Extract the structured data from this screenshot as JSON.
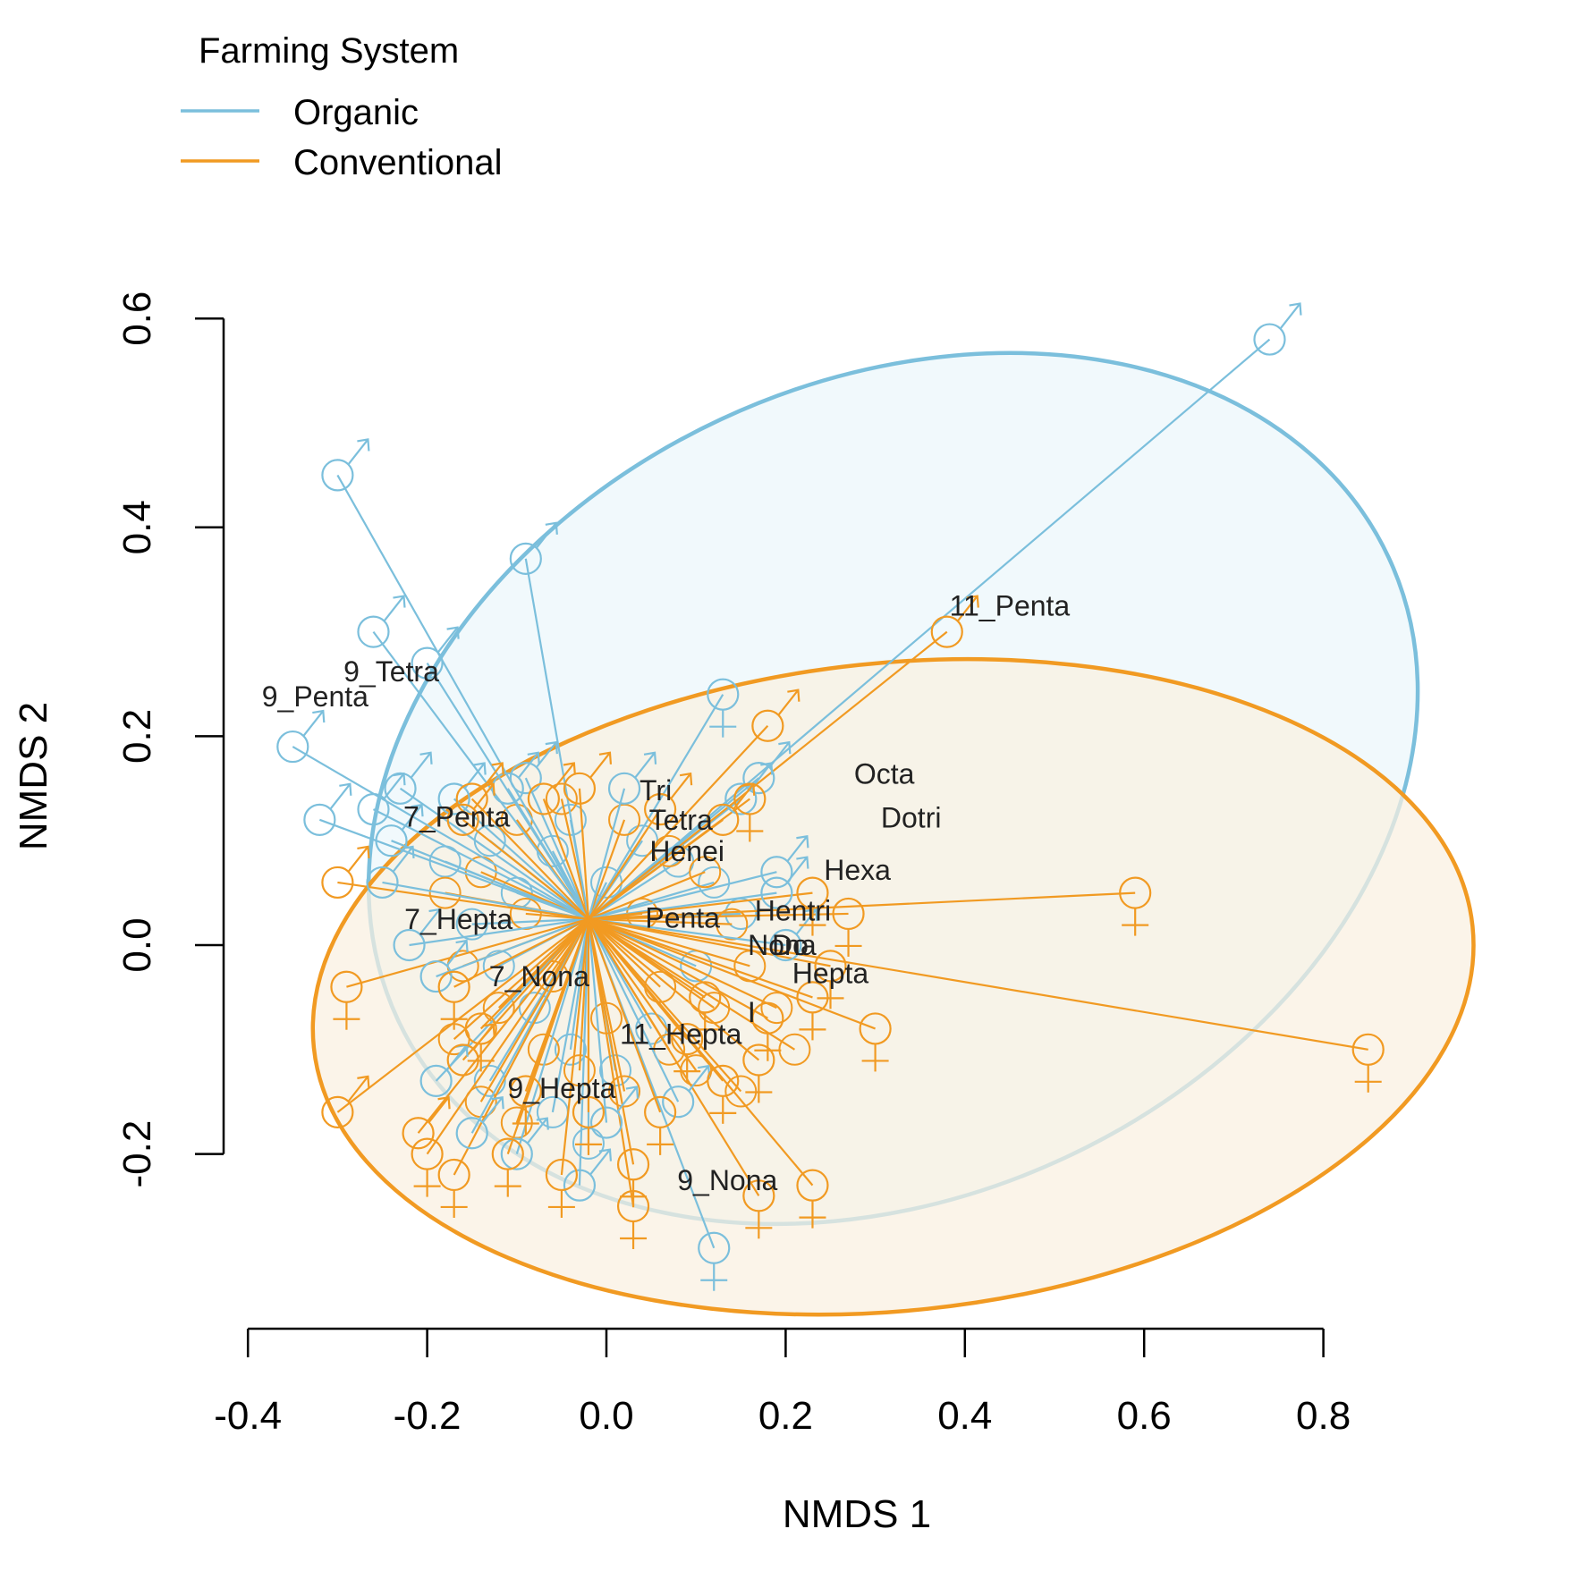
{
  "colors": {
    "organic": "#7bbfdc",
    "conventional": "#f19a22",
    "axis": "#000000",
    "label": "#222222"
  },
  "chart_data": {
    "type": "scatter",
    "xlabel": "NMDS 1",
    "ylabel": "NMDS 2",
    "xlim": [
      -0.4,
      0.8
    ],
    "ylim": [
      -0.2,
      0.6
    ],
    "xticks": [
      -0.4,
      -0.2,
      0.0,
      0.2,
      0.4,
      0.6,
      0.8
    ],
    "yticks": [
      -0.2,
      0.0,
      0.2,
      0.4,
      0.6
    ],
    "xtick_labels": [
      "-0.4",
      "-0.2",
      "0.0",
      "0.2",
      "0.4",
      "0.6",
      "0.8"
    ],
    "ytick_labels": [
      "-0.2",
      "0.0",
      "0.2",
      "0.4",
      "0.6"
    ],
    "grid": false,
    "legend": {
      "title": "Farming System",
      "position": "top-left",
      "entries": [
        {
          "name": "Organic",
          "color": "organic"
        },
        {
          "name": "Conventional",
          "color": "conventional"
        }
      ]
    },
    "centroid": [
      -0.02,
      0.025
    ],
    "ellipses": [
      {
        "group": "organic",
        "cx": 0.32,
        "cy": 0.15,
        "rx": 0.61,
        "ry": 0.39,
        "angle_deg": -25
      },
      {
        "group": "conventional",
        "cx": 0.32,
        "cy": -0.04,
        "rx": 0.65,
        "ry": 0.31,
        "angle_deg": -6
      }
    ],
    "series": [
      {
        "name": "Organic",
        "color": "organic",
        "points": [
          {
            "x": 0.74,
            "y": 0.58,
            "sym": "male"
          },
          {
            "x": -0.3,
            "y": 0.45,
            "sym": "male"
          },
          {
            "x": -0.09,
            "y": 0.37,
            "sym": "male"
          },
          {
            "x": -0.26,
            "y": 0.3,
            "sym": "male"
          },
          {
            "x": -0.2,
            "y": 0.27,
            "sym": "male"
          },
          {
            "x": -0.35,
            "y": 0.19,
            "sym": "male"
          },
          {
            "x": -0.32,
            "y": 0.12,
            "sym": "male"
          },
          {
            "x": -0.26,
            "y": 0.13,
            "sym": "male"
          },
          {
            "x": -0.23,
            "y": 0.15,
            "sym": "male"
          },
          {
            "x": -0.17,
            "y": 0.14,
            "sym": "male"
          },
          {
            "x": -0.11,
            "y": 0.15,
            "sym": "male"
          },
          {
            "x": -0.09,
            "y": 0.16,
            "sym": "male"
          },
          {
            "x": 0.02,
            "y": 0.15,
            "sym": "male"
          },
          {
            "x": -0.24,
            "y": 0.1,
            "sym": "male"
          },
          {
            "x": -0.25,
            "y": 0.06,
            "sym": "male"
          },
          {
            "x": -0.22,
            "y": 0.0,
            "sym": "male"
          },
          {
            "x": -0.19,
            "y": -0.03,
            "sym": "male"
          },
          {
            "x": -0.19,
            "y": -0.13,
            "sym": "male"
          },
          {
            "x": -0.15,
            "y": -0.18,
            "sym": "male"
          },
          {
            "x": -0.1,
            "y": -0.2,
            "sym": "male"
          },
          {
            "x": -0.03,
            "y": -0.23,
            "sym": "male"
          },
          {
            "x": 0.0,
            "y": -0.17,
            "sym": "male"
          },
          {
            "x": 0.13,
            "y": 0.24,
            "sym": "female"
          },
          {
            "x": 0.17,
            "y": 0.16,
            "sym": "male"
          },
          {
            "x": 0.15,
            "y": 0.14,
            "sym": "male"
          },
          {
            "x": 0.19,
            "y": 0.07,
            "sym": "male"
          },
          {
            "x": 0.19,
            "y": 0.05,
            "sym": "male"
          },
          {
            "x": 0.2,
            "y": 0.0,
            "sym": "male"
          },
          {
            "x": 0.08,
            "y": -0.15,
            "sym": "male"
          },
          {
            "x": 0.12,
            "y": -0.29,
            "sym": "female"
          }
        ]
      },
      {
        "name": "Conventional",
        "color": "conventional",
        "points": [
          {
            "x": 0.38,
            "y": 0.3,
            "sym": "male"
          },
          {
            "x": 0.59,
            "y": 0.05,
            "sym": "female"
          },
          {
            "x": 0.85,
            "y": -0.1,
            "sym": "female"
          },
          {
            "x": -0.3,
            "y": 0.06,
            "sym": "male"
          },
          {
            "x": -0.29,
            "y": -0.04,
            "sym": "female"
          },
          {
            "x": -0.3,
            "y": -0.16,
            "sym": "male"
          },
          {
            "x": 0.18,
            "y": 0.21,
            "sym": "male"
          },
          {
            "x": 0.16,
            "y": 0.14,
            "sym": "female"
          },
          {
            "x": 0.23,
            "y": 0.05,
            "sym": "female"
          },
          {
            "x": 0.27,
            "y": 0.03,
            "sym": "female"
          },
          {
            "x": 0.25,
            "y": -0.02,
            "sym": "female"
          },
          {
            "x": 0.23,
            "y": -0.05,
            "sym": "female"
          },
          {
            "x": 0.3,
            "y": -0.08,
            "sym": "female"
          },
          {
            "x": 0.18,
            "y": -0.07,
            "sym": "female"
          },
          {
            "x": 0.17,
            "y": -0.11,
            "sym": "female"
          },
          {
            "x": 0.13,
            "y": -0.13,
            "sym": "female"
          },
          {
            "x": 0.06,
            "y": -0.16,
            "sym": "female"
          },
          {
            "x": 0.03,
            "y": -0.21,
            "sym": "female"
          },
          {
            "x": 0.03,
            "y": -0.25,
            "sym": "female"
          },
          {
            "x": 0.17,
            "y": -0.24,
            "sym": "female"
          },
          {
            "x": 0.23,
            "y": -0.23,
            "sym": "female"
          },
          {
            "x": -0.05,
            "y": -0.22,
            "sym": "female"
          },
          {
            "x": -0.11,
            "y": -0.2,
            "sym": "female"
          },
          {
            "x": -0.17,
            "y": -0.22,
            "sym": "female"
          },
          {
            "x": -0.2,
            "y": -0.2,
            "sym": "female"
          },
          {
            "x": -0.21,
            "y": -0.18,
            "sym": "male"
          },
          {
            "x": -0.16,
            "y": -0.11,
            "sym": "male"
          },
          {
            "x": -0.14,
            "y": -0.08,
            "sym": "female"
          },
          {
            "x": -0.17,
            "y": -0.04,
            "sym": "female"
          },
          {
            "x": -0.16,
            "y": 0.12,
            "sym": "male"
          },
          {
            "x": -0.15,
            "y": 0.14,
            "sym": "male"
          },
          {
            "x": -0.07,
            "y": 0.14,
            "sym": "male"
          },
          {
            "x": -0.03,
            "y": 0.15,
            "sym": "male"
          },
          {
            "x": 0.06,
            "y": 0.13,
            "sym": "male"
          },
          {
            "x": 0.13,
            "y": 0.12,
            "sym": "male"
          },
          {
            "x": 0.11,
            "y": -0.05,
            "sym": "female"
          },
          {
            "x": 0.09,
            "y": -0.09,
            "sym": "female"
          },
          {
            "x": -0.02,
            "y": -0.16,
            "sym": "female"
          },
          {
            "x": -0.09,
            "y": -0.14,
            "sym": "female"
          }
        ]
      }
    ],
    "cluster_markers": [
      {
        "x": -0.18,
        "y": 0.08,
        "g": "organic"
      },
      {
        "x": -0.13,
        "y": 0.1,
        "g": "organic"
      },
      {
        "x": -0.1,
        "y": 0.05,
        "g": "organic"
      },
      {
        "x": -0.06,
        "y": 0.09,
        "g": "organic"
      },
      {
        "x": -0.04,
        "y": 0.12,
        "g": "organic"
      },
      {
        "x": 0.0,
        "y": 0.06,
        "g": "organic"
      },
      {
        "x": 0.04,
        "y": 0.1,
        "g": "organic"
      },
      {
        "x": 0.08,
        "y": 0.08,
        "g": "organic"
      },
      {
        "x": 0.12,
        "y": 0.06,
        "g": "organic"
      },
      {
        "x": 0.15,
        "y": 0.03,
        "g": "organic"
      },
      {
        "x": -0.15,
        "y": 0.02,
        "g": "organic"
      },
      {
        "x": -0.12,
        "y": -0.02,
        "g": "organic"
      },
      {
        "x": -0.08,
        "y": -0.06,
        "g": "organic"
      },
      {
        "x": -0.04,
        "y": -0.1,
        "g": "organic"
      },
      {
        "x": 0.01,
        "y": -0.12,
        "g": "organic"
      },
      {
        "x": 0.05,
        "y": -0.08,
        "g": "organic"
      },
      {
        "x": -0.13,
        "y": -0.13,
        "g": "organic"
      },
      {
        "x": -0.06,
        "y": -0.16,
        "g": "organic"
      },
      {
        "x": -0.02,
        "y": -0.19,
        "g": "organic"
      },
      {
        "x": 0.1,
        "y": -0.02,
        "g": "organic"
      },
      {
        "x": -0.18,
        "y": 0.05,
        "g": "conventional"
      },
      {
        "x": -0.14,
        "y": 0.07,
        "g": "conventional"
      },
      {
        "x": -0.1,
        "y": 0.12,
        "g": "conventional"
      },
      {
        "x": -0.05,
        "y": 0.14,
        "g": "conventional"
      },
      {
        "x": 0.02,
        "y": 0.12,
        "g": "conventional"
      },
      {
        "x": 0.07,
        "y": 0.09,
        "g": "conventional"
      },
      {
        "x": 0.11,
        "y": 0.07,
        "g": "conventional"
      },
      {
        "x": 0.14,
        "y": 0.02,
        "g": "conventional"
      },
      {
        "x": 0.16,
        "y": -0.02,
        "g": "conventional"
      },
      {
        "x": 0.12,
        "y": -0.06,
        "g": "conventional"
      },
      {
        "x": 0.07,
        "y": -0.1,
        "g": "conventional"
      },
      {
        "x": 0.02,
        "y": -0.14,
        "g": "conventional"
      },
      {
        "x": -0.03,
        "y": -0.12,
        "g": "conventional"
      },
      {
        "x": -0.07,
        "y": -0.1,
        "g": "conventional"
      },
      {
        "x": -0.12,
        "y": -0.06,
        "g": "conventional"
      },
      {
        "x": -0.16,
        "y": -0.02,
        "g": "conventional"
      },
      {
        "x": -0.1,
        "y": -0.17,
        "g": "conventional"
      },
      {
        "x": -0.14,
        "y": -0.15,
        "g": "conventional"
      },
      {
        "x": 0.0,
        "y": -0.07,
        "g": "conventional"
      },
      {
        "x": 0.06,
        "y": -0.04,
        "g": "conventional"
      },
      {
        "x": -0.06,
        "y": -0.03,
        "g": "conventional"
      },
      {
        "x": -0.09,
        "y": 0.03,
        "g": "conventional"
      },
      {
        "x": 0.04,
        "y": 0.03,
        "g": "conventional"
      },
      {
        "x": 0.1,
        "y": -0.12,
        "g": "conventional"
      },
      {
        "x": 0.19,
        "y": -0.06,
        "g": "conventional"
      },
      {
        "x": 0.21,
        "y": -0.1,
        "g": "conventional"
      },
      {
        "x": 0.15,
        "y": -0.14,
        "g": "conventional"
      },
      {
        "x": -0.17,
        "y": -0.09,
        "g": "conventional"
      }
    ],
    "annotations": [
      {
        "text": "11_Penta",
        "x": 0.45,
        "y": 0.325
      },
      {
        "text": "9_Tetra",
        "x": -0.24,
        "y": 0.262
      },
      {
        "text": "9_Penta",
        "x": -0.325,
        "y": 0.238
      },
      {
        "text": "Octa",
        "x": 0.31,
        "y": 0.164
      },
      {
        "text": "Dotri",
        "x": 0.34,
        "y": 0.122
      },
      {
        "text": "Tri",
        "x": 0.055,
        "y": 0.148
      },
      {
        "text": "Tetra",
        "x": 0.083,
        "y": 0.12
      },
      {
        "text": "7_Penta",
        "x": -0.167,
        "y": 0.123
      },
      {
        "text": "Henei",
        "x": 0.09,
        "y": 0.09
      },
      {
        "text": "Hexa",
        "x": 0.28,
        "y": 0.072
      },
      {
        "text": "Hentri",
        "x": 0.208,
        "y": 0.033
      },
      {
        "text": "Penta",
        "x": 0.085,
        "y": 0.026
      },
      {
        "text": "7_Hepta",
        "x": -0.165,
        "y": 0.025
      },
      {
        "text": "Nona",
        "x": 0.196,
        "y": 0.0
      },
      {
        "text": "Do",
        "x": 0.205,
        "y": 0.0
      },
      {
        "text": "Hepta",
        "x": 0.25,
        "y": -0.027
      },
      {
        "text": "7_Nona",
        "x": -0.075,
        "y": -0.03
      },
      {
        "text": "I",
        "x": 0.162,
        "y": -0.064
      },
      {
        "text": "11_Hepta",
        "x": 0.083,
        "y": -0.085
      },
      {
        "text": "9_Hepta",
        "x": -0.05,
        "y": -0.137
      },
      {
        "text": "9_Nona",
        "x": 0.135,
        "y": -0.225
      }
    ]
  }
}
